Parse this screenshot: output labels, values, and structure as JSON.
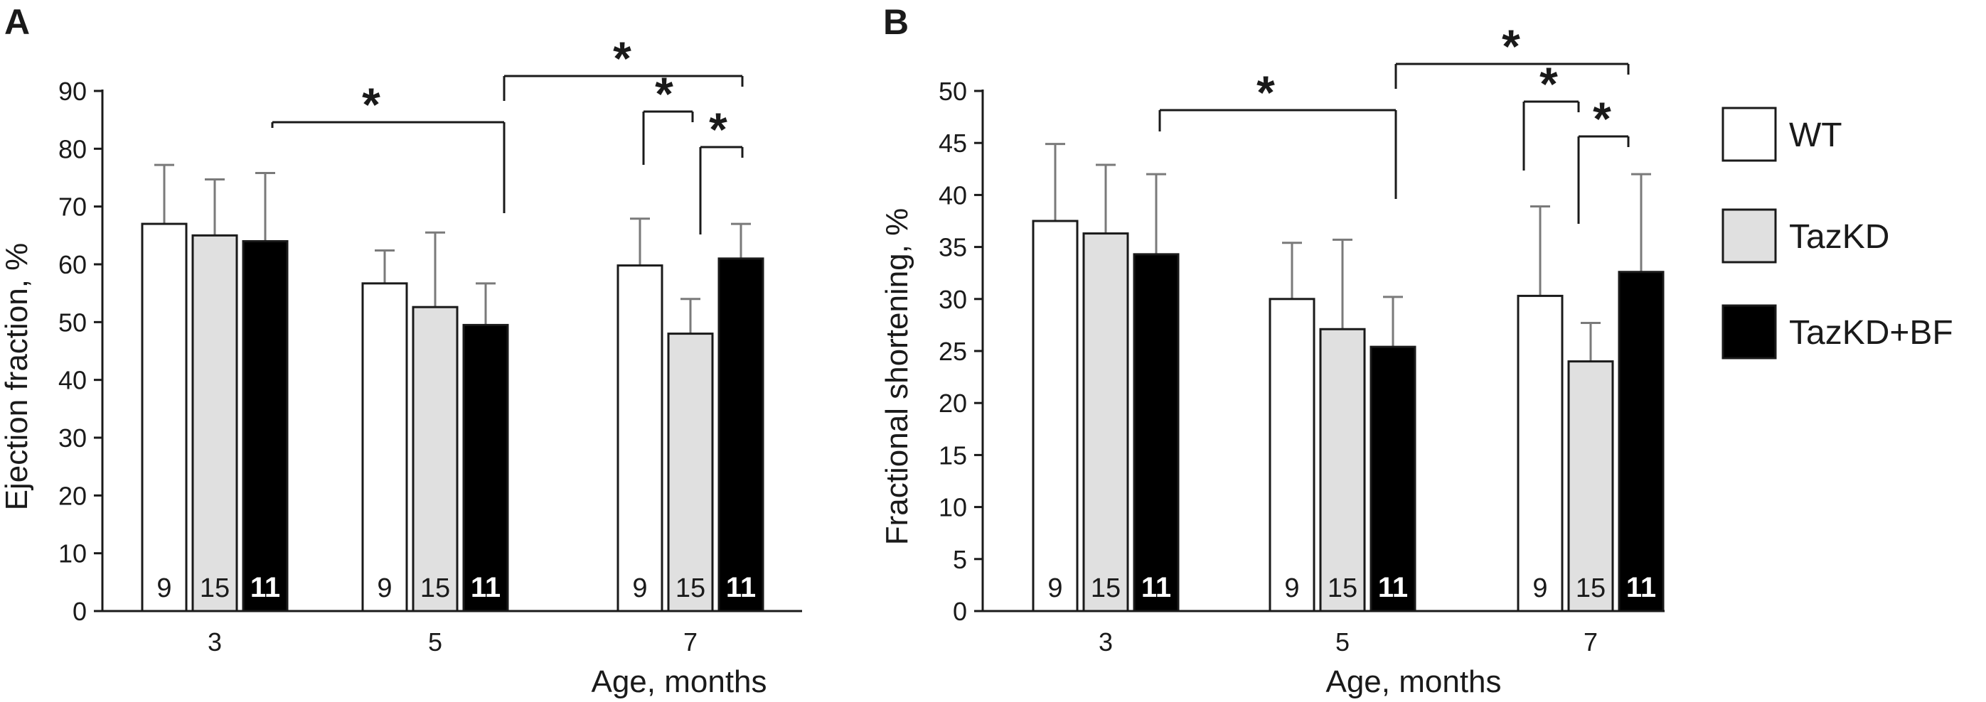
{
  "colors": {
    "WT": "#ffffff",
    "TazKD": "#e0e0e0",
    "TazKD+BF": "#000000",
    "axis": "#1a1a1a",
    "errorbar": "#7a7a7a"
  },
  "legend": {
    "entries": [
      {
        "series": "WT",
        "label": "WT"
      },
      {
        "series": "TazKD",
        "label": "TazKD"
      },
      {
        "series": "TazKD+BF",
        "label": "TazKD+BF"
      }
    ]
  },
  "chart_data": [
    {
      "panel": "A",
      "type": "bar",
      "ylabel": "Ejection fraction, %",
      "xlabel": "Age, months",
      "categories": [
        "3",
        "5",
        "7"
      ],
      "ylim": [
        0,
        90
      ],
      "yticks": [
        "0",
        "10",
        "20",
        "30",
        "40",
        "50",
        "60",
        "70",
        "80",
        "90"
      ],
      "series": [
        {
          "name": "WT",
          "values": [
            67.0,
            56.7,
            59.8
          ],
          "errors": [
            10.2,
            5.7,
            8.1
          ],
          "n": [
            "9",
            "9",
            "9"
          ]
        },
        {
          "name": "TazKD",
          "values": [
            65.0,
            52.6,
            48.0
          ],
          "errors": [
            9.7,
            12.9,
            6.0
          ],
          "n": [
            "15",
            "15",
            "15"
          ]
        },
        {
          "name": "TazKD+BF",
          "values": [
            64.0,
            49.5,
            61.0
          ],
          "errors": [
            11.8,
            7.2,
            6.0
          ],
          "n": [
            "11",
            "11",
            "11"
          ]
        }
      ],
      "significance": [
        {
          "from": [
            0,
            2
          ],
          "to": [
            1,
            2
          ],
          "label": "*"
        },
        {
          "from": [
            1,
            2
          ],
          "to": [
            2,
            2
          ],
          "label": "*"
        },
        {
          "from": [
            2,
            0
          ],
          "to": [
            2,
            1
          ],
          "label": "*"
        },
        {
          "from": [
            2,
            1
          ],
          "to": [
            2,
            2
          ],
          "label": "*"
        }
      ]
    },
    {
      "panel": "B",
      "type": "bar",
      "ylabel": "Fractional shortening, %",
      "xlabel": "Age, months",
      "categories": [
        "3",
        "5",
        "7"
      ],
      "ylim": [
        0,
        50
      ],
      "yticks": [
        "0",
        "5",
        "10",
        "15",
        "20",
        "25",
        "30",
        "35",
        "40",
        "45",
        "50"
      ],
      "series": [
        {
          "name": "WT",
          "values": [
            37.5,
            30.0,
            30.3
          ],
          "errors": [
            7.4,
            5.4,
            8.6
          ],
          "n": [
            "9",
            "9",
            "9"
          ]
        },
        {
          "name": "TazKD",
          "values": [
            36.3,
            27.1,
            24.0
          ],
          "errors": [
            6.6,
            8.6,
            3.7
          ],
          "n": [
            "15",
            "15",
            "15"
          ]
        },
        {
          "name": "TazKD+BF",
          "values": [
            34.3,
            25.4,
            32.6
          ],
          "errors": [
            7.7,
            4.8,
            9.4
          ],
          "n": [
            "11",
            "11",
            "11"
          ]
        }
      ],
      "significance": [
        {
          "from": [
            0,
            2
          ],
          "to": [
            1,
            2
          ],
          "label": "*"
        },
        {
          "from": [
            1,
            2
          ],
          "to": [
            2,
            2
          ],
          "label": "*"
        },
        {
          "from": [
            2,
            0
          ],
          "to": [
            2,
            1
          ],
          "label": "*"
        },
        {
          "from": [
            2,
            1
          ],
          "to": [
            2,
            2
          ],
          "label": "*"
        }
      ]
    }
  ]
}
